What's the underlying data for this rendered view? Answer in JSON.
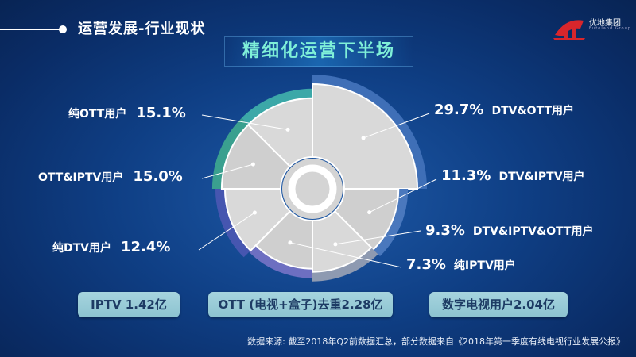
{
  "header": {
    "section_title": "运营发展-行业现状",
    "logo_text": "优地集团",
    "logo_sub": "Eutoland Group"
  },
  "main_title": "精细化运营下半场",
  "chart_data": {
    "type": "pie",
    "variant": "rose",
    "series": [
      {
        "name": "DTV&OTT用户",
        "value": 29.7,
        "label": "29.7%",
        "ring_color": "#3f6fb7"
      },
      {
        "name": "DTV&IPTV用户",
        "value": 11.3,
        "label": "11.3%",
        "ring_color": "#4a78bd"
      },
      {
        "name": "DTV&IPTV&OTT用户",
        "value": 9.3,
        "label": "9.3%",
        "ring_color": "#8e9ab1"
      },
      {
        "name": "纯IPTV用户",
        "value": 7.3,
        "label": "7.3%",
        "ring_color": "#6d6fc1"
      },
      {
        "name": "纯DTV用户",
        "value": 12.4,
        "label": "12.4%",
        "ring_color": "#4656b0"
      },
      {
        "name": "OTT&IPTV用户",
        "value": 15.0,
        "label": "15.0%",
        "ring_color": "#3aa08f"
      },
      {
        "name": "纯OTT用户",
        "value": 15.1,
        "label": "15.1%",
        "ring_color": "#3ca8a8"
      }
    ]
  },
  "stats": [
    {
      "text": "IPTV 1.42亿"
    },
    {
      "text": "OTT (电视+盒子)去重2.28亿"
    },
    {
      "text": "数字电视用户2.04亿"
    }
  ],
  "source": "数据来源: 截至2018年Q2前数据汇总，部分数据来自《2018年第一季度有线电视行业发展公报》"
}
